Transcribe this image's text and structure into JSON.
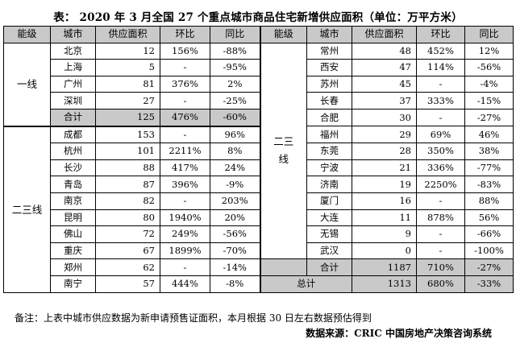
{
  "title": "表：  2020 年 3 月全国 27 个重点城市商品住宅新增供应面积（单位：万平方米）",
  "headers": [
    "能级",
    "城市",
    "供应面积",
    "环比",
    "同比",
    "能级",
    "城市",
    "供应面积",
    "环比",
    "同比"
  ],
  "left": {
    "tier1_label": "一线",
    "tier1_rows": [
      {
        "city": "北京",
        "supply": "12",
        "mom": "156%",
        "yoy": "-88%"
      },
      {
        "city": "上海",
        "supply": "5",
        "mom": "-",
        "yoy": "-95%"
      },
      {
        "city": "广州",
        "supply": "81",
        "mom": "376%",
        "yoy": "2%"
      },
      {
        "city": "深圳",
        "supply": "27",
        "mom": "-",
        "yoy": "-25%"
      }
    ],
    "tier1_total": {
      "city": "合计",
      "supply": "125",
      "mom": "476%",
      "yoy": "-60%"
    },
    "tier23_label": "二三线",
    "tier23_rows": [
      {
        "city": "成都",
        "supply": "153",
        "mom": "-",
        "yoy": "96%"
      },
      {
        "city": "杭州",
        "supply": "101",
        "mom": "2211%",
        "yoy": "8%"
      },
      {
        "city": "长沙",
        "supply": "88",
        "mom": "417%",
        "yoy": "24%"
      },
      {
        "city": "青岛",
        "supply": "87",
        "mom": "396%",
        "yoy": "-9%"
      },
      {
        "city": "南京",
        "supply": "82",
        "mom": "-",
        "yoy": "203%"
      },
      {
        "city": "昆明",
        "supply": "80",
        "mom": "1940%",
        "yoy": "20%"
      },
      {
        "city": "佛山",
        "supply": "72",
        "mom": "249%",
        "yoy": "-56%"
      },
      {
        "city": "重庆",
        "supply": "67",
        "mom": "1899%",
        "yoy": "-70%"
      },
      {
        "city": "郑州",
        "supply": "62",
        "mom": "-",
        "yoy": "-14%"
      },
      {
        "city": "南宁",
        "supply": "57",
        "mom": "444%",
        "yoy": "-8%"
      }
    ]
  },
  "right": {
    "tier23_label": "二三线",
    "rows": [
      {
        "city": "常州",
        "supply": "48",
        "mom": "452%",
        "yoy": "12%"
      },
      {
        "city": "西安",
        "supply": "47",
        "mom": "114%",
        "yoy": "-56%"
      },
      {
        "city": "苏州",
        "supply": "45",
        "mom": "-",
        "yoy": "-4%"
      },
      {
        "city": "长春",
        "supply": "37",
        "mom": "333%",
        "yoy": "-15%"
      },
      {
        "city": "合肥",
        "supply": "30",
        "mom": "-",
        "yoy": "-27%"
      },
      {
        "city": "福州",
        "supply": "29",
        "mom": "69%",
        "yoy": "46%"
      },
      {
        "city": "东莞",
        "supply": "28",
        "mom": "350%",
        "yoy": "38%"
      },
      {
        "city": "宁波",
        "supply": "21",
        "mom": "336%",
        "yoy": "-77%"
      },
      {
        "city": "济南",
        "supply": "19",
        "mom": "2250%",
        "yoy": "-83%"
      },
      {
        "city": "厦门",
        "supply": "16",
        "mom": "-",
        "yoy": "88%"
      },
      {
        "city": "大连",
        "supply": "11",
        "mom": "878%",
        "yoy": "56%"
      },
      {
        "city": "无锡",
        "supply": "9",
        "mom": "-",
        "yoy": "-66%"
      },
      {
        "city": "武汉",
        "supply": "0",
        "mom": "-",
        "yoy": "-100%"
      }
    ],
    "tier23_total": {
      "city": "合计",
      "supply": "1187",
      "mom": "710%",
      "yoy": "-27%"
    },
    "grand_total": {
      "label": "总计",
      "supply": "1313",
      "mom": "680%",
      "yoy": "-33%"
    }
  },
  "note": "备注：上表中城市供应数据为新申请预售证面积，本月根据 30 日左右数据预估得到",
  "source": "数据来源：CRIC 中国房地产决策咨询系统"
}
